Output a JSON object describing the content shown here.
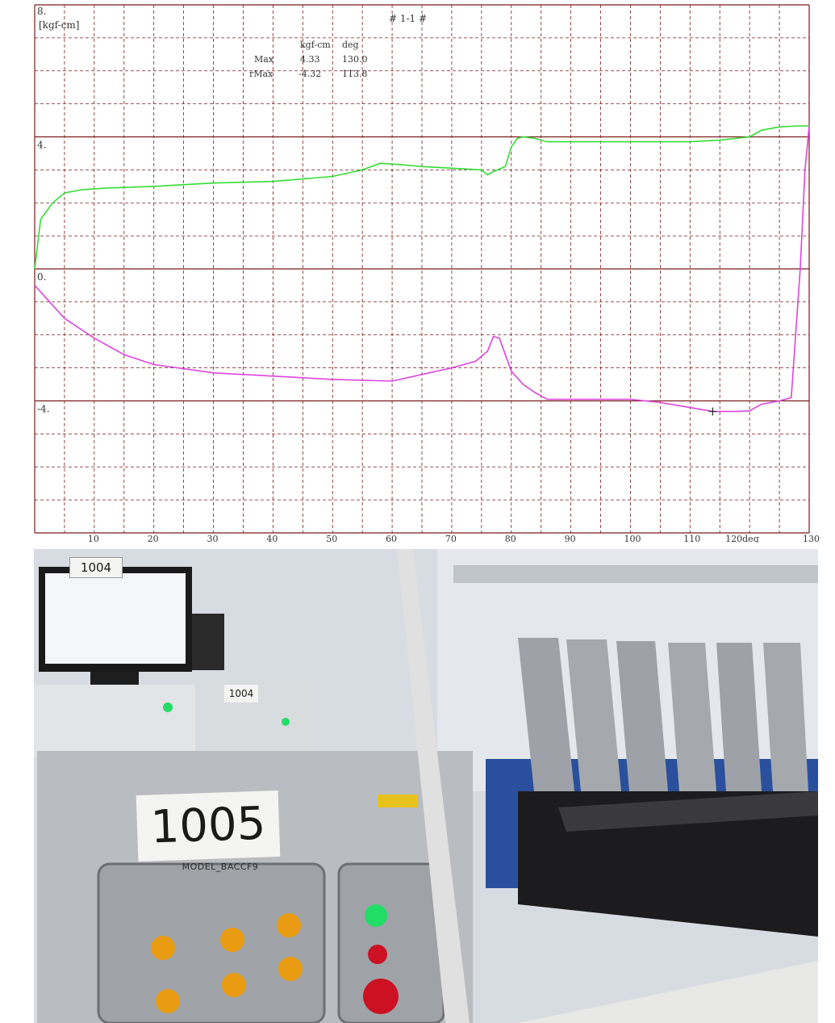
{
  "chart": {
    "title": "# 1-1 #",
    "unit_label": "[kgf-cm]",
    "summary": {
      "headers": [
        "kgf-cm",
        "deg"
      ],
      "rows": [
        {
          "label": "Max",
          "kgf_cm": "4.33",
          "deg": "130.0"
        },
        {
          "label": "rMax",
          "kgf_cm": "-4.32",
          "deg": "113.8"
        }
      ]
    },
    "colors": {
      "grid": "#7a1a1a",
      "series_1": "#33dd33",
      "series_2": "#dd44dd"
    }
  },
  "chart_data": {
    "type": "line",
    "title": "# 1-1 #",
    "ylabel": "[kgf-cm]",
    "xlabel": "",
    "x_unit_label": "deg",
    "ylim": [
      -8,
      8
    ],
    "xlim": [
      0,
      130
    ],
    "y_ticks": [
      "8.",
      "4.",
      "0.",
      "-4."
    ],
    "x_ticks": [
      "10",
      "20",
      "30",
      "40",
      "50",
      "60",
      "70",
      "80",
      "90",
      "100",
      "110",
      "120",
      "130"
    ],
    "x_tick_label_120": "120deg",
    "x_tick_label_130": "130",
    "grid": true,
    "series": [
      {
        "color": "#33dd33",
        "x": [
          0,
          1,
          3,
          5,
          8,
          12,
          20,
          30,
          40,
          50,
          55,
          58,
          62,
          65,
          70,
          75,
          76,
          77,
          79,
          80,
          81,
          82,
          84,
          86,
          90,
          95,
          100,
          105,
          110,
          115,
          120,
          122,
          125,
          128,
          130
        ],
        "y": [
          0.0,
          1.5,
          2.0,
          2.3,
          2.4,
          2.45,
          2.5,
          2.6,
          2.65,
          2.8,
          3.0,
          3.2,
          3.15,
          3.1,
          3.05,
          3.0,
          2.85,
          2.95,
          3.1,
          3.7,
          3.95,
          4.0,
          3.95,
          3.85,
          3.85,
          3.85,
          3.85,
          3.85,
          3.85,
          3.9,
          4.0,
          4.2,
          4.3,
          4.33,
          4.33
        ]
      },
      {
        "color": "#dd44dd",
        "x": [
          0,
          2,
          5,
          10,
          15,
          20,
          30,
          40,
          50,
          60,
          65,
          70,
          74,
          76,
          77,
          78,
          79,
          80,
          82,
          84,
          86,
          88,
          90,
          100,
          105,
          110,
          113.8,
          118,
          120,
          122,
          125,
          127,
          128.5,
          129.3,
          130
        ],
        "y": [
          -0.5,
          -0.9,
          -1.5,
          -2.1,
          -2.6,
          -2.9,
          -3.15,
          -3.25,
          -3.35,
          -3.4,
          -3.2,
          -3.0,
          -2.8,
          -2.5,
          -2.05,
          -2.1,
          -2.6,
          -3.1,
          -3.5,
          -3.75,
          -3.95,
          -3.95,
          -3.95,
          -3.95,
          -4.05,
          -4.2,
          -4.32,
          -4.32,
          -4.3,
          -4.1,
          -4.0,
          -3.9,
          0.0,
          3.0,
          4.33
        ]
      }
    ],
    "markers": [
      {
        "x": 113.8,
        "y": -4.32,
        "symbol": "+"
      }
    ]
  },
  "photo": {
    "label_main": "1005",
    "label_top": "1004",
    "label_mid": "1004",
    "model_plate": "MODEL_BACCF9",
    "colors": {
      "panel": "#b9bcc0",
      "led_green": "#22dd66",
      "button_amber": "#e89a10",
      "estop_red": "#cc1122",
      "frame_blue": "#2a4f9c"
    }
  }
}
